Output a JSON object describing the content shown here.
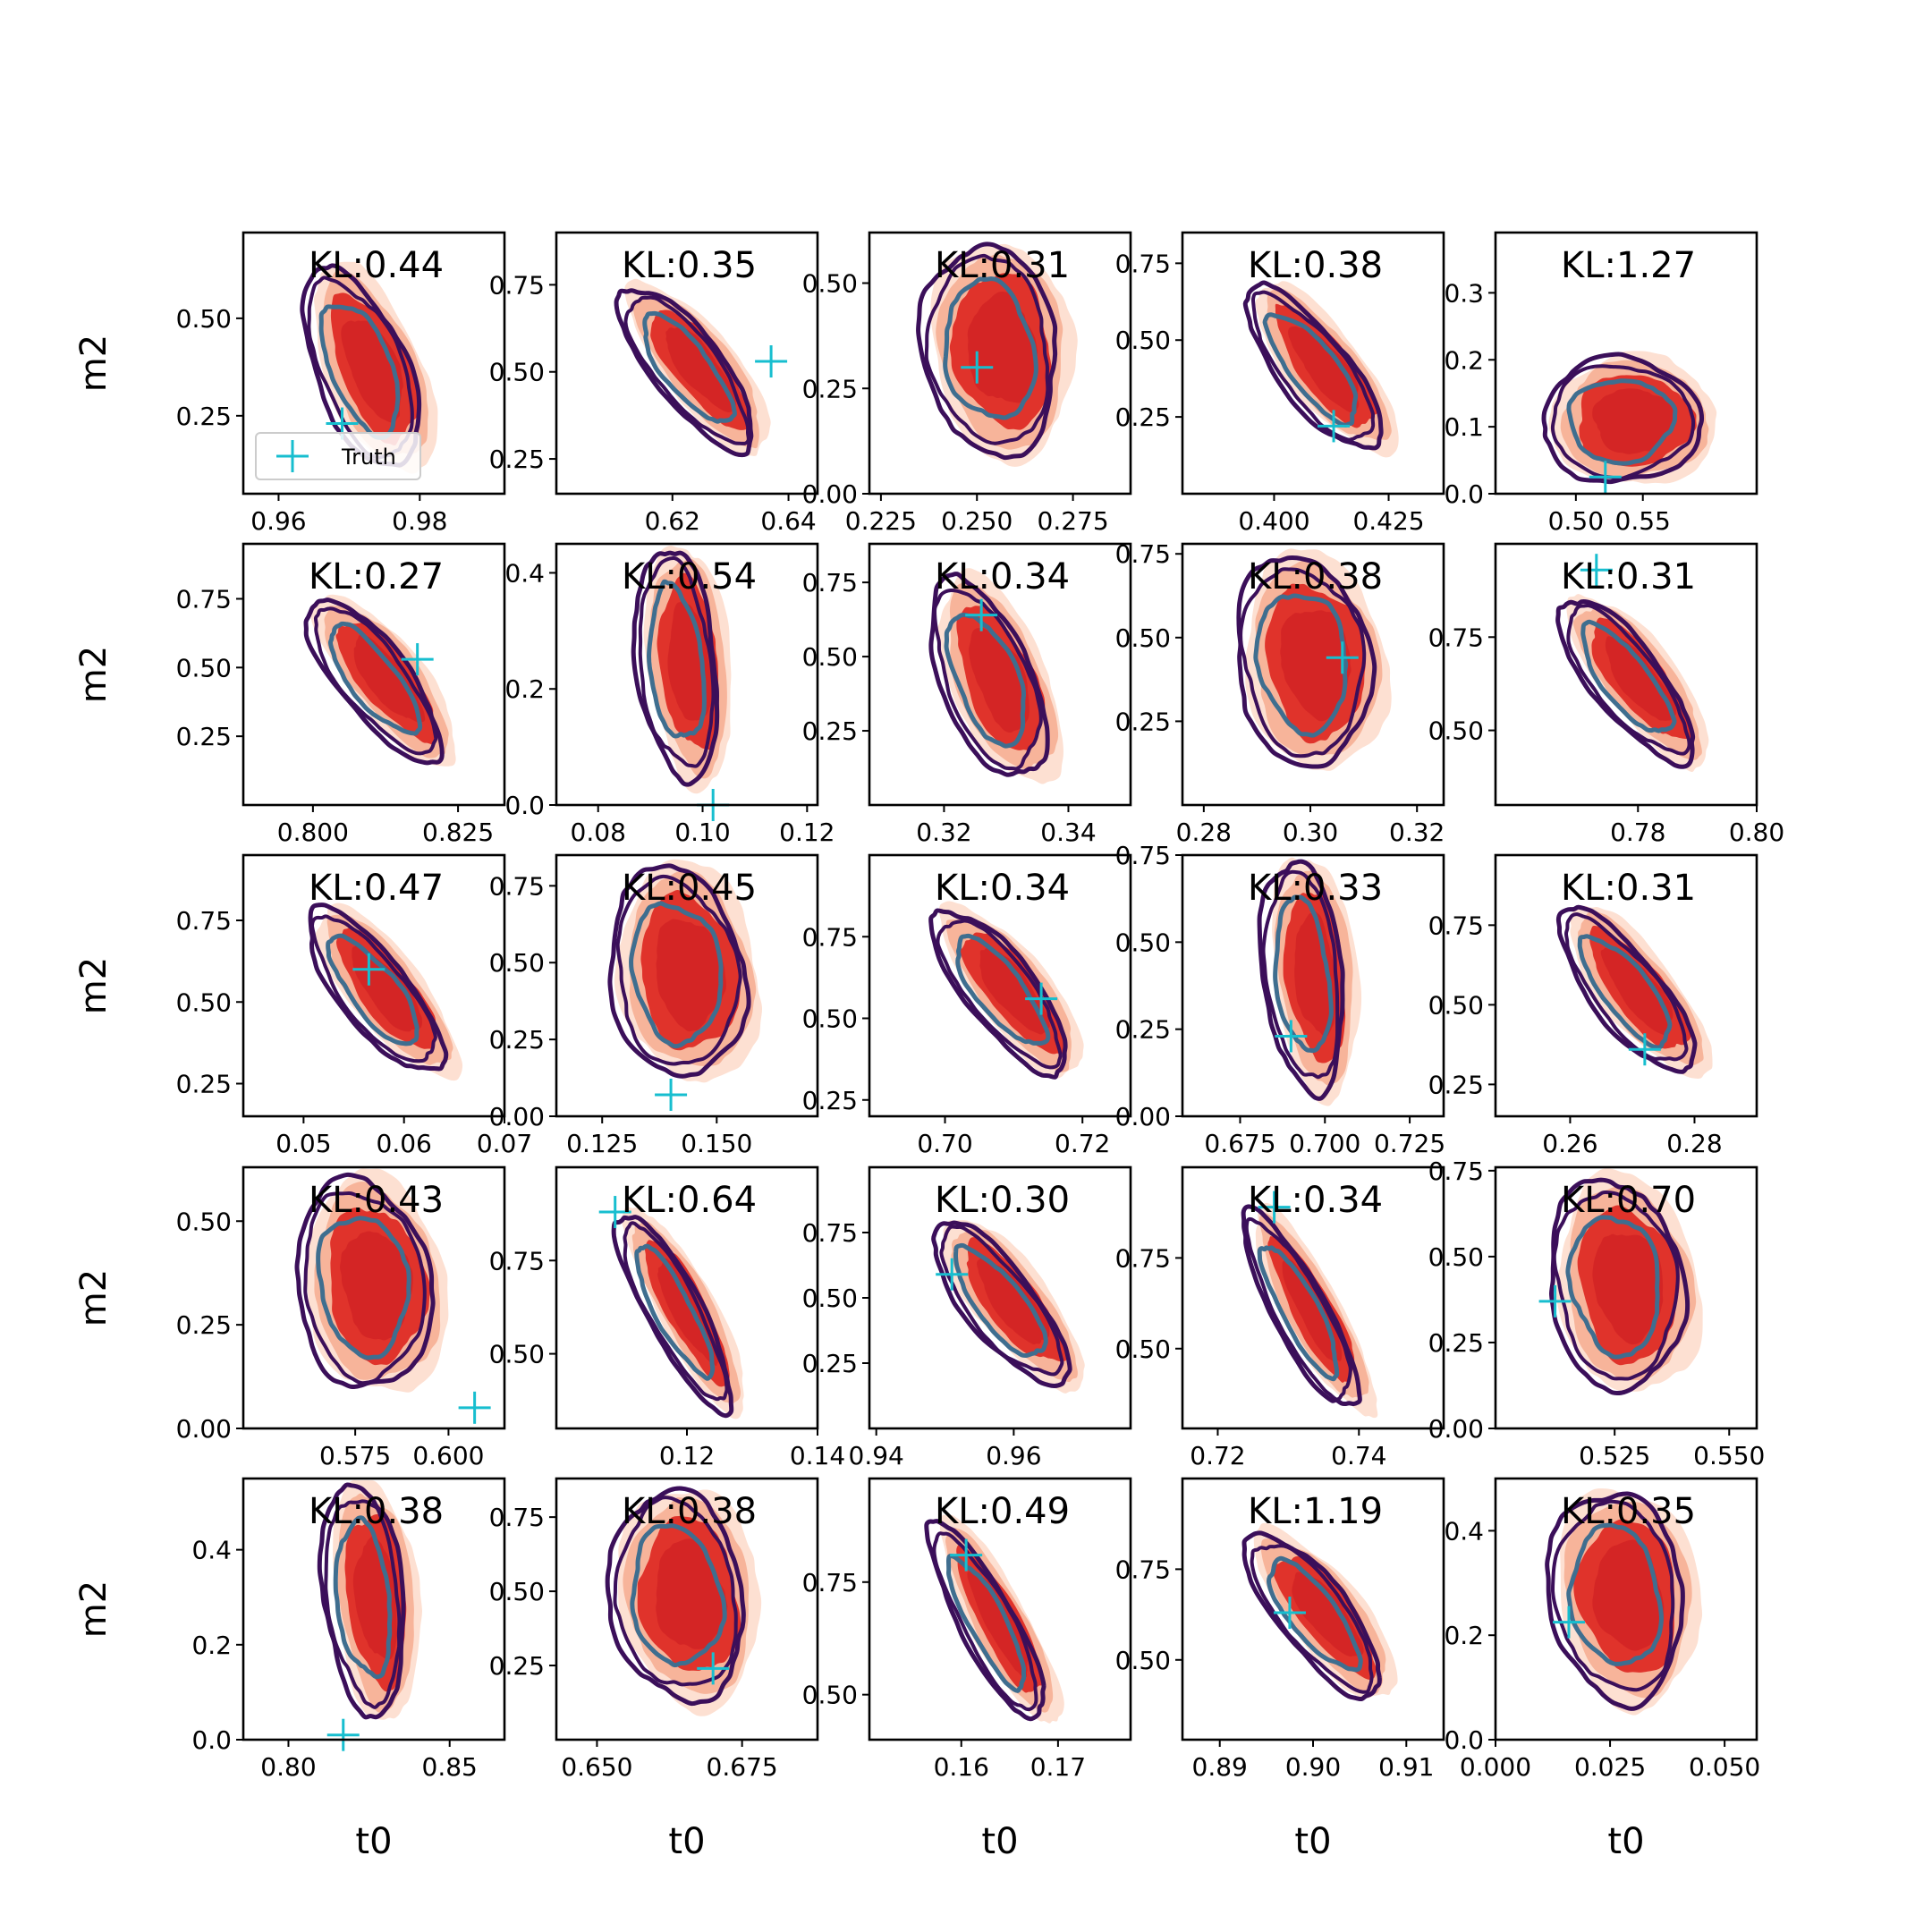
{
  "figure": {
    "xlabel": "t0",
    "ylabel": "m2",
    "legend_label": "Truth"
  },
  "colors": {
    "kde_fill_light": "#fde0d2",
    "kde_fill_mid": "#f7b49a",
    "kde_fill_dark": "#e0332b",
    "kde_fill_core": "#cb1d22",
    "contour_outer": "#3b0f5a",
    "contour_mid": "#3b0f5a",
    "contour_inner": "#3f6e8f",
    "truth": "#17becf"
  },
  "chart_data": {
    "type": "scatter",
    "description_kind": "grid of 2D kernel density posteriors (filled) with contour overlays and truth markers",
    "rows": 5,
    "cols": 5,
    "panels": [
      {
        "kl": "KL:0.44",
        "xlim": [
          0.955,
          0.992
        ],
        "ylim": [
          0.05,
          0.72
        ],
        "xticks": [
          "0.96",
          "0.98"
        ],
        "xtick_values": [
          0.96,
          0.98
        ],
        "yticks": [
          "0.25",
          "0.50"
        ],
        "ytick_values": [
          0.25,
          0.5
        ],
        "truth": [
          0.969,
          0.23
        ],
        "shape": "tilt0",
        "legend": true
      },
      {
        "kl": "KL:0.35",
        "xlim": [
          0.6,
          0.645
        ],
        "ylim": [
          0.15,
          0.9
        ],
        "xticks": [
          "0.62",
          "0.64"
        ],
        "xtick_values": [
          0.62,
          0.64
        ],
        "yticks": [
          "0.25",
          "0.50",
          "0.75"
        ],
        "ytick_values": [
          0.25,
          0.5,
          0.75
        ],
        "truth": [
          0.637,
          0.53
        ],
        "shape": "diag"
      },
      {
        "kl": "KL:0.31",
        "xlim": [
          0.222,
          0.29
        ],
        "ylim": [
          0.0,
          0.62
        ],
        "xticks": [
          "0.225",
          "0.250",
          "0.275"
        ],
        "xtick_values": [
          0.225,
          0.25,
          0.275
        ],
        "yticks": [
          "0.00",
          "0.25",
          "0.50"
        ],
        "ytick_values": [
          0.0,
          0.25,
          0.5
        ],
        "truth": [
          0.25,
          0.3
        ],
        "shape": "blob"
      },
      {
        "kl": "KL:0.38",
        "xlim": [
          0.38,
          0.437
        ],
        "ylim": [
          0.0,
          0.85
        ],
        "xticks": [
          "0.400",
          "0.425"
        ],
        "xtick_values": [
          0.4,
          0.425
        ],
        "yticks": [
          "0.25",
          "0.50",
          "0.75"
        ],
        "ytick_values": [
          0.25,
          0.5,
          0.75
        ],
        "truth": [
          0.413,
          0.22
        ],
        "shape": "diag"
      },
      {
        "kl": "KL:1.27",
        "xlim": [
          0.44,
          0.635
        ],
        "ylim": [
          0.0,
          0.39
        ],
        "xticks": [
          "0.50",
          "0.55"
        ],
        "xtick_values": [
          0.5,
          0.55
        ],
        "yticks": [
          "0.0",
          "0.1",
          "0.2",
          "0.3"
        ],
        "ytick_values": [
          0.0,
          0.1,
          0.2,
          0.3
        ],
        "truth": [
          0.522,
          0.025
        ],
        "shape": "low"
      },
      {
        "kl": "KL:0.27",
        "xlim": [
          0.788,
          0.833
        ],
        "ylim": [
          0.0,
          0.95
        ],
        "xticks": [
          "0.800",
          "0.825"
        ],
        "xtick_values": [
          0.8,
          0.825
        ],
        "yticks": [
          "0.25",
          "0.50",
          "0.75"
        ],
        "ytick_values": [
          0.25,
          0.5,
          0.75
        ],
        "truth": [
          0.818,
          0.53
        ],
        "shape": "diag"
      },
      {
        "kl": "KL:0.54",
        "xlim": [
          0.072,
          0.122
        ],
        "ylim": [
          0.0,
          0.45
        ],
        "xticks": [
          "0.08",
          "0.10",
          "0.12"
        ],
        "xtick_values": [
          0.08,
          0.1,
          0.12
        ],
        "yticks": [
          "0.0",
          "0.2",
          "0.4"
        ],
        "ytick_values": [
          0.0,
          0.2,
          0.4
        ],
        "truth": [
          0.102,
          0.0
        ],
        "shape": "tall"
      },
      {
        "kl": "KL:0.34",
        "xlim": [
          0.308,
          0.35
        ],
        "ylim": [
          0.0,
          0.88
        ],
        "xticks": [
          "0.32",
          "0.34"
        ],
        "xtick_values": [
          0.32,
          0.34
        ],
        "yticks": [
          "0.25",
          "0.50",
          "0.75"
        ],
        "ytick_values": [
          0.25,
          0.5,
          0.75
        ],
        "truth": [
          0.326,
          0.64
        ],
        "shape": "tilt0"
      },
      {
        "kl": "KL:0.38",
        "xlim": [
          0.276,
          0.325
        ],
        "ylim": [
          0.0,
          0.78
        ],
        "xticks": [
          "0.28",
          "0.30",
          "0.32"
        ],
        "xtick_values": [
          0.28,
          0.3,
          0.32
        ],
        "yticks": [
          "0.25",
          "0.50",
          "0.75"
        ],
        "ytick_values": [
          0.25,
          0.5,
          0.75
        ],
        "truth": [
          0.306,
          0.44
        ],
        "shape": "blob"
      },
      {
        "kl": "KL:0.31",
        "xlim": [
          0.756,
          0.8
        ],
        "ylim": [
          0.3,
          1.0
        ],
        "xticks": [
          "0.78",
          "0.80"
        ],
        "xtick_values": [
          0.78,
          0.8
        ],
        "yticks": [
          "0.50",
          "0.75"
        ],
        "ytick_values": [
          0.5,
          0.75
        ],
        "truth": [
          0.773,
          0.93
        ],
        "shape": "diag"
      },
      {
        "kl": "KL:0.47",
        "xlim": [
          0.044,
          0.07
        ],
        "ylim": [
          0.15,
          0.95
        ],
        "xticks": [
          "0.05",
          "0.06",
          "0.07"
        ],
        "xtick_values": [
          0.05,
          0.06,
          0.07
        ],
        "yticks": [
          "0.25",
          "0.50",
          "0.75"
        ],
        "ytick_values": [
          0.25,
          0.5,
          0.75
        ],
        "truth": [
          0.0565,
          0.6
        ],
        "shape": "diag"
      },
      {
        "kl": "KL:0.45",
        "xlim": [
          0.115,
          0.172
        ],
        "ylim": [
          0.0,
          0.85
        ],
        "xticks": [
          "0.125",
          "0.150"
        ],
        "xtick_values": [
          0.125,
          0.15
        ],
        "yticks": [
          "0.00",
          "0.25",
          "0.50",
          "0.75"
        ],
        "ytick_values": [
          0.0,
          0.25,
          0.5,
          0.75
        ],
        "truth": [
          0.14,
          0.07
        ],
        "shape": "blob"
      },
      {
        "kl": "KL:0.34",
        "xlim": [
          0.689,
          0.727
        ],
        "ylim": [
          0.2,
          1.0
        ],
        "xticks": [
          "0.70",
          "0.72"
        ],
        "xtick_values": [
          0.7,
          0.72
        ],
        "yticks": [
          "0.25",
          "0.50",
          "0.75"
        ],
        "ytick_values": [
          0.25,
          0.5,
          0.75
        ],
        "truth": [
          0.714,
          0.56
        ],
        "shape": "diag"
      },
      {
        "kl": "KL:0.33",
        "xlim": [
          0.658,
          0.735
        ],
        "ylim": [
          0.0,
          0.75
        ],
        "xticks": [
          "0.675",
          "0.700",
          "0.725"
        ],
        "xtick_values": [
          0.675,
          0.7,
          0.725
        ],
        "yticks": [
          "0.00",
          "0.25",
          "0.50",
          "0.75"
        ],
        "ytick_values": [
          0.0,
          0.25,
          0.5,
          0.75
        ],
        "truth": [
          0.69,
          0.23
        ],
        "shape": "tall"
      },
      {
        "kl": "KL:0.31",
        "xlim": [
          0.248,
          0.29
        ],
        "ylim": [
          0.15,
          0.97
        ],
        "xticks": [
          "0.26",
          "0.28"
        ],
        "xtick_values": [
          0.26,
          0.28
        ],
        "yticks": [
          "0.25",
          "0.50",
          "0.75"
        ],
        "ytick_values": [
          0.25,
          0.5,
          0.75
        ],
        "truth": [
          0.272,
          0.36
        ],
        "shape": "diag"
      },
      {
        "kl": "KL:0.43",
        "xlim": [
          0.545,
          0.615
        ],
        "ylim": [
          0.0,
          0.63
        ],
        "xticks": [
          "0.575",
          "0.600"
        ],
        "xtick_values": [
          0.575,
          0.6
        ],
        "yticks": [
          "0.00",
          "0.25",
          "0.50"
        ],
        "ytick_values": [
          0.0,
          0.25,
          0.5
        ],
        "truth": [
          0.607,
          0.05
        ],
        "shape": "blob"
      },
      {
        "kl": "KL:0.64",
        "xlim": [
          0.1,
          0.14
        ],
        "ylim": [
          0.3,
          1.0
        ],
        "xticks": [
          "0.12",
          "0.14"
        ],
        "xtick_values": [
          0.12,
          0.14
        ],
        "yticks": [
          "0.50",
          "0.75"
        ],
        "ytick_values": [
          0.5,
          0.75
        ],
        "truth": [
          0.109,
          0.88
        ],
        "shape": "steep"
      },
      {
        "kl": "KL:0.30",
        "xlim": [
          0.939,
          0.977
        ],
        "ylim": [
          0.0,
          1.0
        ],
        "xticks": [
          "0.94",
          "0.96"
        ],
        "xtick_values": [
          0.94,
          0.96
        ],
        "yticks": [
          "0.25",
          "0.50",
          "0.75"
        ],
        "ytick_values": [
          0.25,
          0.5,
          0.75
        ],
        "truth": [
          0.951,
          0.59
        ],
        "shape": "diag"
      },
      {
        "kl": "KL:0.34",
        "xlim": [
          0.715,
          0.752
        ],
        "ylim": [
          0.28,
          1.0
        ],
        "xticks": [
          "0.72",
          "0.74"
        ],
        "xtick_values": [
          0.72,
          0.74
        ],
        "yticks": [
          "0.50",
          "0.75"
        ],
        "ytick_values": [
          0.5,
          0.75
        ],
        "truth": [
          0.728,
          0.89
        ],
        "shape": "steep"
      },
      {
        "kl": "KL:0.70",
        "xlim": [
          0.499,
          0.556
        ],
        "ylim": [
          0.0,
          0.76
        ],
        "xticks": [
          "0.525",
          "0.550"
        ],
        "xtick_values": [
          0.525,
          0.55
        ],
        "yticks": [
          "0.00",
          "0.25",
          "0.50",
          "0.75"
        ],
        "ytick_values": [
          0.0,
          0.25,
          0.5,
          0.75
        ],
        "truth": [
          0.512,
          0.37
        ],
        "shape": "blob"
      },
      {
        "kl": "KL:0.38",
        "xlim": [
          0.786,
          0.867
        ],
        "ylim": [
          0.0,
          0.55
        ],
        "xticks": [
          "0.80",
          "0.85"
        ],
        "xtick_values": [
          0.8,
          0.85
        ],
        "yticks": [
          "0.0",
          "0.2",
          "0.4"
        ],
        "ytick_values": [
          0.0,
          0.2,
          0.4
        ],
        "truth": [
          0.817,
          0.01
        ],
        "shape": "tall"
      },
      {
        "kl": "KL:0.38",
        "xlim": [
          0.643,
          0.688
        ],
        "ylim": [
          0.0,
          0.88
        ],
        "xticks": [
          "0.650",
          "0.675"
        ],
        "xtick_values": [
          0.65,
          0.675
        ],
        "yticks": [
          "0.25",
          "0.50",
          "0.75"
        ],
        "ytick_values": [
          0.25,
          0.5,
          0.75
        ],
        "truth": [
          0.67,
          0.24
        ],
        "shape": "blob"
      },
      {
        "kl": "KL:0.49",
        "xlim": [
          0.1505,
          0.1775
        ],
        "ylim": [
          0.4,
          0.98
        ],
        "xticks": [
          "0.16",
          "0.17"
        ],
        "xtick_values": [
          0.16,
          0.17
        ],
        "yticks": [
          "0.50",
          "0.75"
        ],
        "ytick_values": [
          0.5,
          0.75
        ],
        "truth": [
          0.1605,
          0.81
        ],
        "shape": "steep"
      },
      {
        "kl": "KL:1.19",
        "xlim": [
          0.886,
          0.914
        ],
        "ylim": [
          0.28,
          1.0
        ],
        "xticks": [
          "0.89",
          "0.90",
          "0.91"
        ],
        "xtick_values": [
          0.89,
          0.9,
          0.91
        ],
        "yticks": [
          "0.50",
          "0.75"
        ],
        "ytick_values": [
          0.5,
          0.75
        ],
        "truth": [
          0.8975,
          0.63
        ],
        "shape": "diag"
      },
      {
        "kl": "KL:0.35",
        "xlim": [
          0.0,
          0.057
        ],
        "ylim": [
          0.0,
          0.5
        ],
        "xticks": [
          "0.000",
          "0.025",
          "0.050"
        ],
        "xtick_values": [
          0.0,
          0.025,
          0.05
        ],
        "yticks": [
          "0.0",
          "0.2",
          "0.4"
        ],
        "ytick_values": [
          0.0,
          0.2,
          0.4
        ],
        "truth": [
          0.016,
          0.225
        ],
        "shape": "blob"
      }
    ]
  }
}
